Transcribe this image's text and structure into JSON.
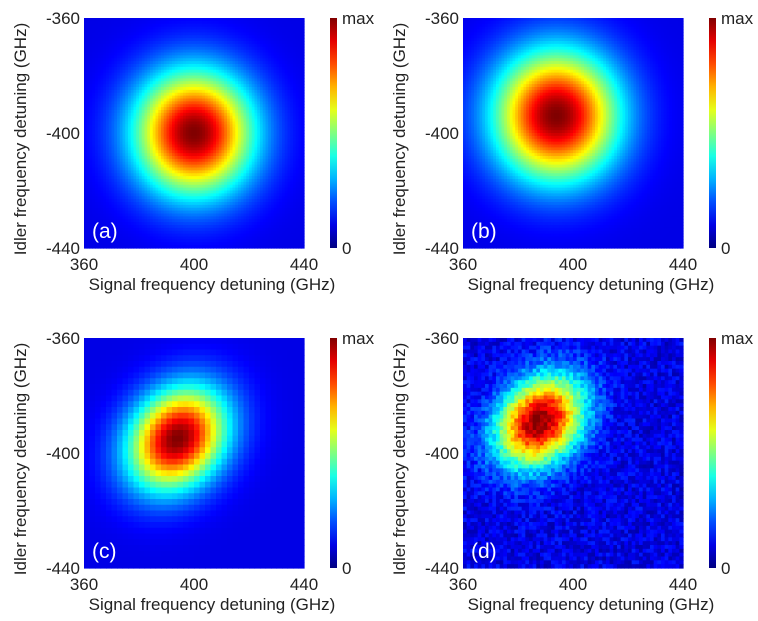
{
  "chart_data": [
    {
      "type": "heatmap",
      "panel_label": "(a)",
      "xlabel": "Signal frequency detuning (GHz)",
      "ylabel": "Idler frequency detuning (GHz)",
      "xlim": [
        360,
        440
      ],
      "ylim": [
        -440,
        -360
      ],
      "x_ticks": [
        "360",
        "400",
        "440"
      ],
      "y_ticks": [
        "-360",
        "-400",
        "-440"
      ],
      "colorbar": {
        "max_label": "max",
        "min_label": "0"
      },
      "peak": {
        "x": 400,
        "y": -400,
        "radius_ghz": 21,
        "elongation": 1.0,
        "tilt_deg": 0
      },
      "noise": 0,
      "grid_cells": 80
    },
    {
      "type": "heatmap",
      "panel_label": "(b)",
      "xlabel": "Signal frequency detuning (GHz)",
      "ylabel": "Idler frequency detuning (GHz)",
      "xlim": [
        360,
        440
      ],
      "ylim": [
        -440,
        -360
      ],
      "x_ticks": [
        "360",
        "400",
        "440"
      ],
      "y_ticks": [
        "-360",
        "-400",
        "-440"
      ],
      "colorbar": {
        "max_label": "max",
        "min_label": "0"
      },
      "peak": {
        "x": 394,
        "y": -394,
        "radius_ghz": 22,
        "elongation": 1.0,
        "tilt_deg": 0
      },
      "noise": 0,
      "grid_cells": 80
    },
    {
      "type": "heatmap",
      "panel_label": "(c)",
      "xlabel": "Signal frequency detuning (GHz)",
      "ylabel": "Idler frequency detuning (GHz)",
      "xlim": [
        360,
        440
      ],
      "ylim": [
        -440,
        -360
      ],
      "x_ticks": [
        "360",
        "400",
        "440"
      ],
      "y_ticks": [
        "-360",
        "-400",
        "-440"
      ],
      "colorbar": {
        "max_label": "max",
        "min_label": "0"
      },
      "peak": {
        "x": 394,
        "y": -395,
        "radius_ghz": 17,
        "elongation": 1.25,
        "tilt_deg": 45
      },
      "noise": 0,
      "grid_cells": 40
    },
    {
      "type": "heatmap",
      "panel_label": "(d)",
      "xlabel": "Signal frequency detuning (GHz)",
      "ylabel": "Idler frequency detuning (GHz)",
      "xlim": [
        360,
        440
      ],
      "ylim": [
        -440,
        -360
      ],
      "x_ticks": [
        "360",
        "400",
        "440"
      ],
      "y_ticks": [
        "-360",
        "-400",
        "-440"
      ],
      "colorbar": {
        "max_label": "max",
        "min_label": "0"
      },
      "peak": {
        "x": 388,
        "y": -389,
        "radius_ghz": 15,
        "elongation": 1.3,
        "tilt_deg": 45
      },
      "noise": 0.06,
      "grid_cells": 60
    }
  ]
}
